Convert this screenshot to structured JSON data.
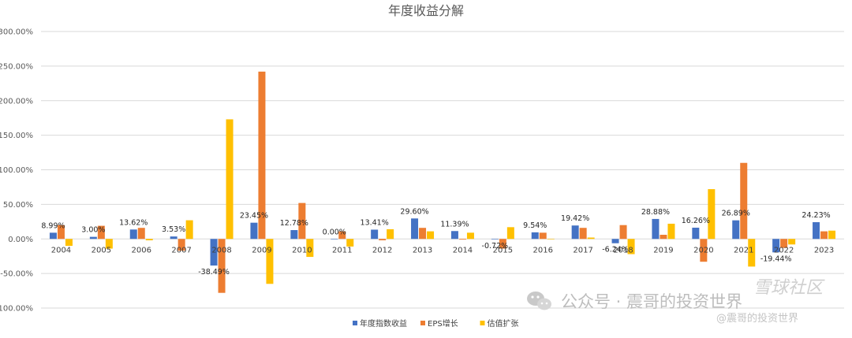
{
  "chart_data": {
    "type": "bar",
    "title": "年度收益分解",
    "categories": [
      "2004",
      "2005",
      "2006",
      "2007",
      "2008",
      "2009",
      "2010",
      "2011",
      "2012",
      "2013",
      "2014",
      "2015",
      "2016",
      "2017",
      "2018",
      "2019",
      "2020",
      "2021",
      "2022",
      "2023"
    ],
    "series": [
      {
        "name": "年度指数收益",
        "color": "#4472C4",
        "values": [
          8.99,
          3.0,
          13.62,
          3.53,
          -38.49,
          23.45,
          12.78,
          0.0,
          13.41,
          29.6,
          11.39,
          -0.72,
          9.54,
          19.42,
          -6.24,
          28.88,
          16.26,
          26.89,
          -19.44,
          24.23
        ]
      },
      {
        "name": "EPS增长",
        "color": "#ED7D31",
        "values": [
          20,
          19,
          16,
          -17,
          -78,
          242,
          52,
          11,
          -2,
          16,
          -1,
          -14,
          9,
          16,
          20,
          6,
          -33,
          110,
          -13,
          11
        ]
      },
      {
        "name": "估值扩张",
        "color": "#FFC000",
        "values": [
          -10,
          -14,
          -2,
          27,
          173,
          -65,
          -26,
          -11,
          14,
          11,
          9,
          17,
          0,
          2,
          -22,
          22,
          72,
          -40,
          -8,
          12
        ]
      }
    ],
    "data_labels": [
      "8.99%",
      "3.00%",
      "13.62%",
      "3.53%",
      "-38.49%",
      "23.45%",
      "12.78%",
      "0.00%",
      "13.41%",
      "29.60%",
      "11.39%",
      "-0.72%",
      "9.54%",
      "19.42%",
      "-6.24%",
      "28.88%",
      "16.26%",
      "26.89%",
      "-19.44%",
      "24.23%"
    ],
    "ylim": [
      -100,
      300
    ],
    "yticks": [
      -100,
      -50,
      0,
      50,
      100,
      150,
      200,
      250,
      300
    ],
    "ytick_labels": [
      "-100.00%",
      "-50.00%",
      "0.00%",
      "50.00%",
      "100.00%",
      "150.00%",
      "200.00%",
      "250.00%",
      "300.00%"
    ],
    "grid": true,
    "legend_position": "bottom"
  },
  "watermark": {
    "main": "公众号 · 震哥的投资世界",
    "sub": "@震哥的投资世界",
    "logo": "雪球社区"
  }
}
